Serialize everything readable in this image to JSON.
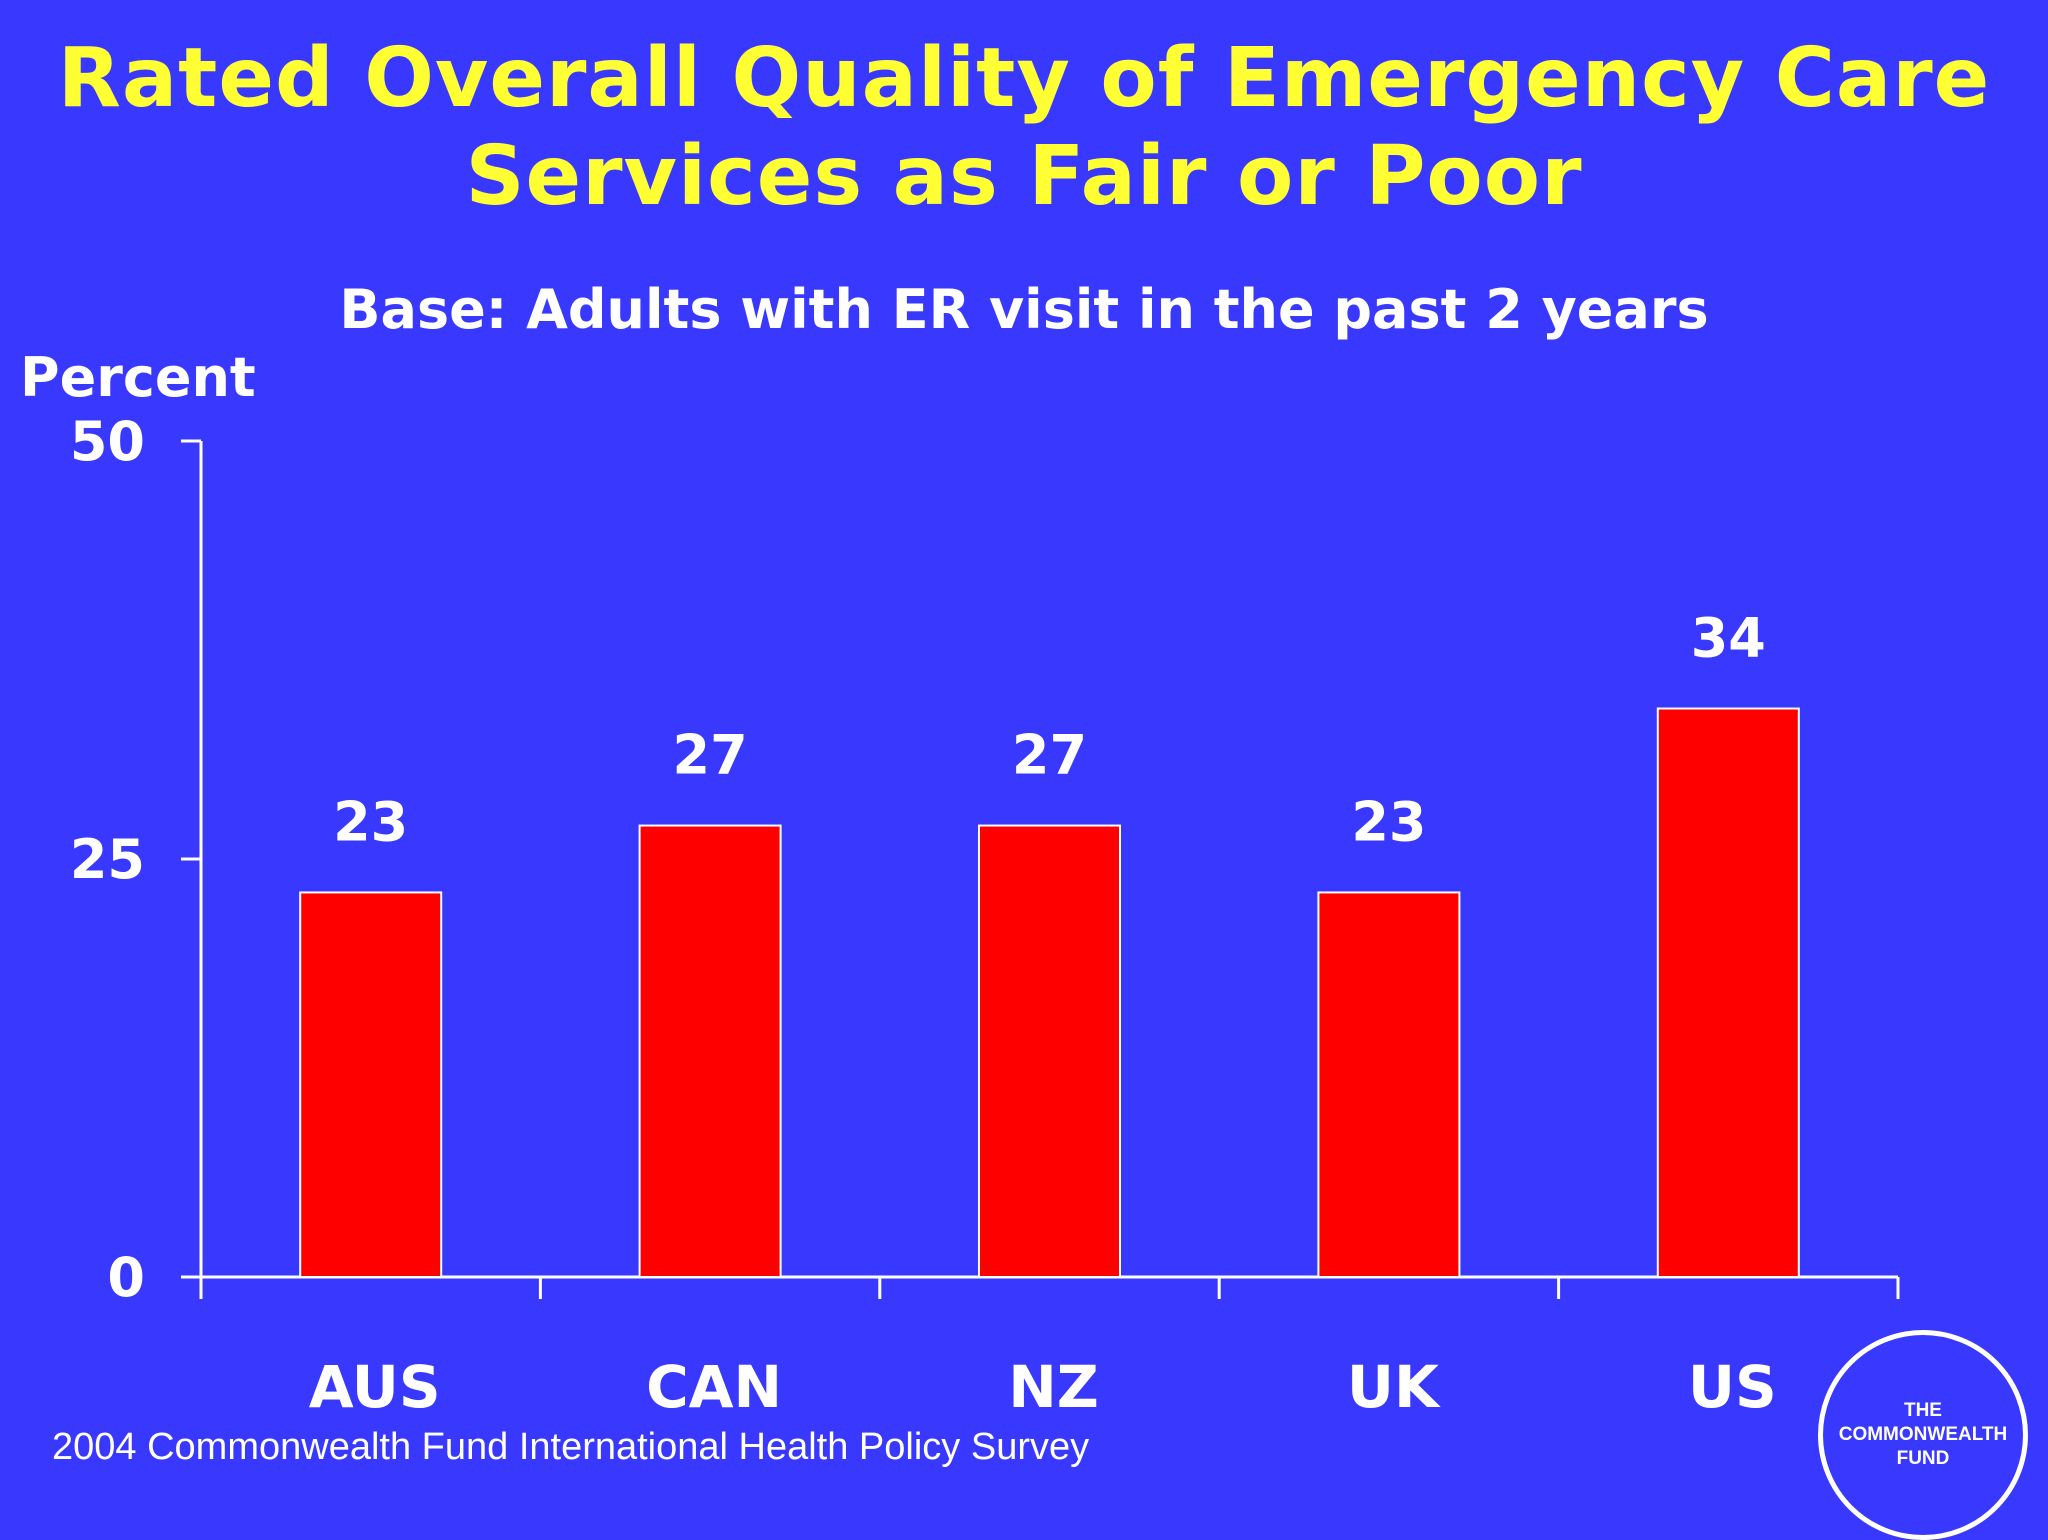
{
  "colors": {
    "background": "#3838ff",
    "title": "#ffff33",
    "bar": "#ff0000",
    "text": "#ffffff"
  },
  "chart_data": {
    "type": "bar",
    "title": [
      "Rated Overall Quality of Emergency Care",
      "Services as Fair or Poor"
    ],
    "subtitle": "Base: Adults with ER visit in the past 2 years",
    "ylabel": "Percent",
    "xlabel": "",
    "categories": [
      "AUS",
      "CAN",
      "NZ",
      "UK",
      "US"
    ],
    "values": [
      23,
      27,
      27,
      23,
      34
    ],
    "data_labels": [
      "23",
      "27",
      "27",
      "23",
      "34"
    ],
    "ylim": [
      0,
      50
    ],
    "yticks": [
      0,
      25,
      50
    ],
    "ytick_labels": [
      "0",
      "25",
      "50"
    ],
    "grid": false,
    "legend": "none"
  },
  "footer": {
    "source": "2004 Commonwealth Fund International Health Policy Survey"
  },
  "logo": {
    "lines": [
      "THE",
      "COMMONWEALTH",
      "FUND"
    ]
  }
}
